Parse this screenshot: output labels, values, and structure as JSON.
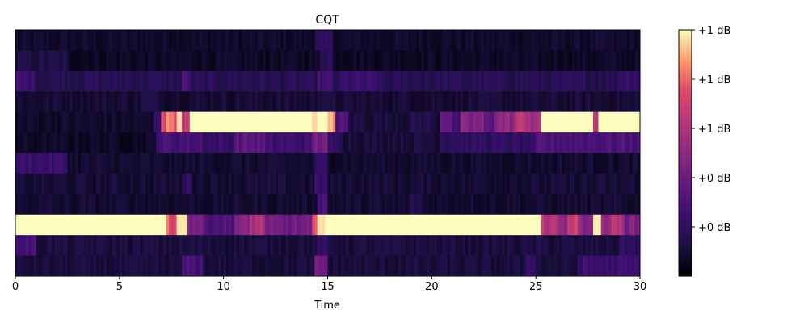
{
  "chart_data": {
    "type": "heatmap",
    "title": "CQT",
    "xlabel": "Time",
    "ylabel": "",
    "xlim": [
      0,
      30
    ],
    "x_ticks": [
      0,
      5,
      10,
      15,
      20,
      25,
      30
    ],
    "y_ticks_visible": false,
    "n_rows": 12,
    "colormap": "magma",
    "colorbar": {
      "position": "right",
      "tick_labels": [
        "+0 dB",
        "+0 dB",
        "+1 dB",
        "+1 dB",
        "+1 dB"
      ],
      "tick_levels": [
        0.2,
        0.4,
        0.6,
        0.8,
        1.0
      ]
    },
    "rows_top_to_bottom": [
      {
        "base": 0.08,
        "segments": [
          [
            14.4,
            15.2,
            0.18
          ]
        ]
      },
      {
        "base": 0.07,
        "segments": [
          [
            0,
            2.5,
            0.13
          ],
          [
            14.6,
            15.2,
            0.2
          ]
        ]
      },
      {
        "base": 0.17,
        "segments": [
          [
            0,
            1.0,
            0.25
          ],
          [
            8.0,
            8.4,
            0.3
          ],
          [
            14.5,
            15.2,
            0.25
          ],
          [
            15.6,
            17.5,
            0.23
          ],
          [
            29.0,
            30,
            0.24
          ]
        ]
      },
      {
        "base": 0.1,
        "segments": [
          [
            6.0,
            7.0,
            0.13
          ],
          [
            14.5,
            15.0,
            0.15
          ]
        ]
      },
      {
        "base": 0.08,
        "segments": [
          [
            6.6,
            7.0,
            0.25
          ],
          [
            7.0,
            7.2,
            0.7
          ],
          [
            7.2,
            7.5,
            0.92
          ],
          [
            7.5,
            7.7,
            0.75
          ],
          [
            7.7,
            8.0,
            0.95
          ],
          [
            8.0,
            8.4,
            0.65
          ],
          [
            8.4,
            14.3,
            1.0
          ],
          [
            14.3,
            14.5,
            0.95
          ],
          [
            14.5,
            15.0,
            1.0
          ],
          [
            15.0,
            15.4,
            0.85
          ],
          [
            15.4,
            16.0,
            0.3
          ],
          [
            16.0,
            19.0,
            0.12
          ],
          [
            19.0,
            20.0,
            0.15
          ],
          [
            20.0,
            20.4,
            0.1
          ],
          [
            20.4,
            21.0,
            0.4
          ],
          [
            21.0,
            21.4,
            0.25
          ],
          [
            21.4,
            22.5,
            0.45
          ],
          [
            22.5,
            23.0,
            0.35
          ],
          [
            23.0,
            24.0,
            0.5
          ],
          [
            24.0,
            24.8,
            0.62
          ],
          [
            24.8,
            25.2,
            0.55
          ],
          [
            25.2,
            27.8,
            1.0
          ],
          [
            27.8,
            27.95,
            0.65
          ],
          [
            27.95,
            30,
            1.0
          ]
        ]
      },
      {
        "base": 0.07,
        "segments": [
          [
            6.8,
            9.0,
            0.28
          ],
          [
            9.0,
            10.5,
            0.22
          ],
          [
            10.5,
            12.0,
            0.35
          ],
          [
            12.0,
            14.3,
            0.25
          ],
          [
            14.3,
            15.0,
            0.42
          ],
          [
            15.0,
            15.8,
            0.2
          ],
          [
            15.8,
            20.4,
            0.12
          ],
          [
            20.4,
            25.0,
            0.2
          ],
          [
            25.0,
            30,
            0.3
          ]
        ]
      },
      {
        "base": 0.09,
        "segments": [
          [
            0,
            2.5,
            0.24
          ],
          [
            14.4,
            15.0,
            0.2
          ]
        ]
      },
      {
        "base": 0.1,
        "segments": [
          [
            8.0,
            8.5,
            0.2
          ],
          [
            14.4,
            15.0,
            0.22
          ]
        ]
      },
      {
        "base": 0.09,
        "segments": [
          [
            14.5,
            15.0,
            0.3
          ],
          [
            19.0,
            19.5,
            0.15
          ]
        ]
      },
      {
        "base": 0.15,
        "segments": [
          [
            0,
            7.3,
            1.0
          ],
          [
            7.3,
            7.7,
            0.78
          ],
          [
            7.7,
            8.3,
            0.97
          ],
          [
            8.3,
            9.0,
            0.45
          ],
          [
            9.0,
            10.5,
            0.32
          ],
          [
            10.5,
            11.2,
            0.45
          ],
          [
            11.2,
            12.0,
            0.6
          ],
          [
            12.0,
            14.2,
            0.4
          ],
          [
            14.2,
            14.5,
            0.7
          ],
          [
            14.5,
            14.9,
            0.96
          ],
          [
            14.9,
            25.3,
            1.0
          ],
          [
            25.3,
            26.0,
            0.65
          ],
          [
            26.0,
            26.5,
            0.5
          ],
          [
            26.5,
            27.0,
            0.7
          ],
          [
            27.0,
            27.8,
            0.5
          ],
          [
            27.8,
            28.1,
            0.98
          ],
          [
            28.1,
            28.5,
            0.5
          ],
          [
            28.5,
            29.2,
            0.6
          ],
          [
            29.2,
            30,
            0.45
          ]
        ]
      },
      {
        "base": 0.12,
        "segments": [
          [
            0,
            1.0,
            0.28
          ],
          [
            14.5,
            15.0,
            0.2
          ],
          [
            29.0,
            30,
            0.2
          ]
        ]
      },
      {
        "base": 0.11,
        "segments": [
          [
            8.0,
            9.0,
            0.28
          ],
          [
            14.4,
            15.0,
            0.4
          ],
          [
            24.5,
            25.0,
            0.25
          ],
          [
            27.0,
            30,
            0.24
          ]
        ]
      }
    ]
  }
}
